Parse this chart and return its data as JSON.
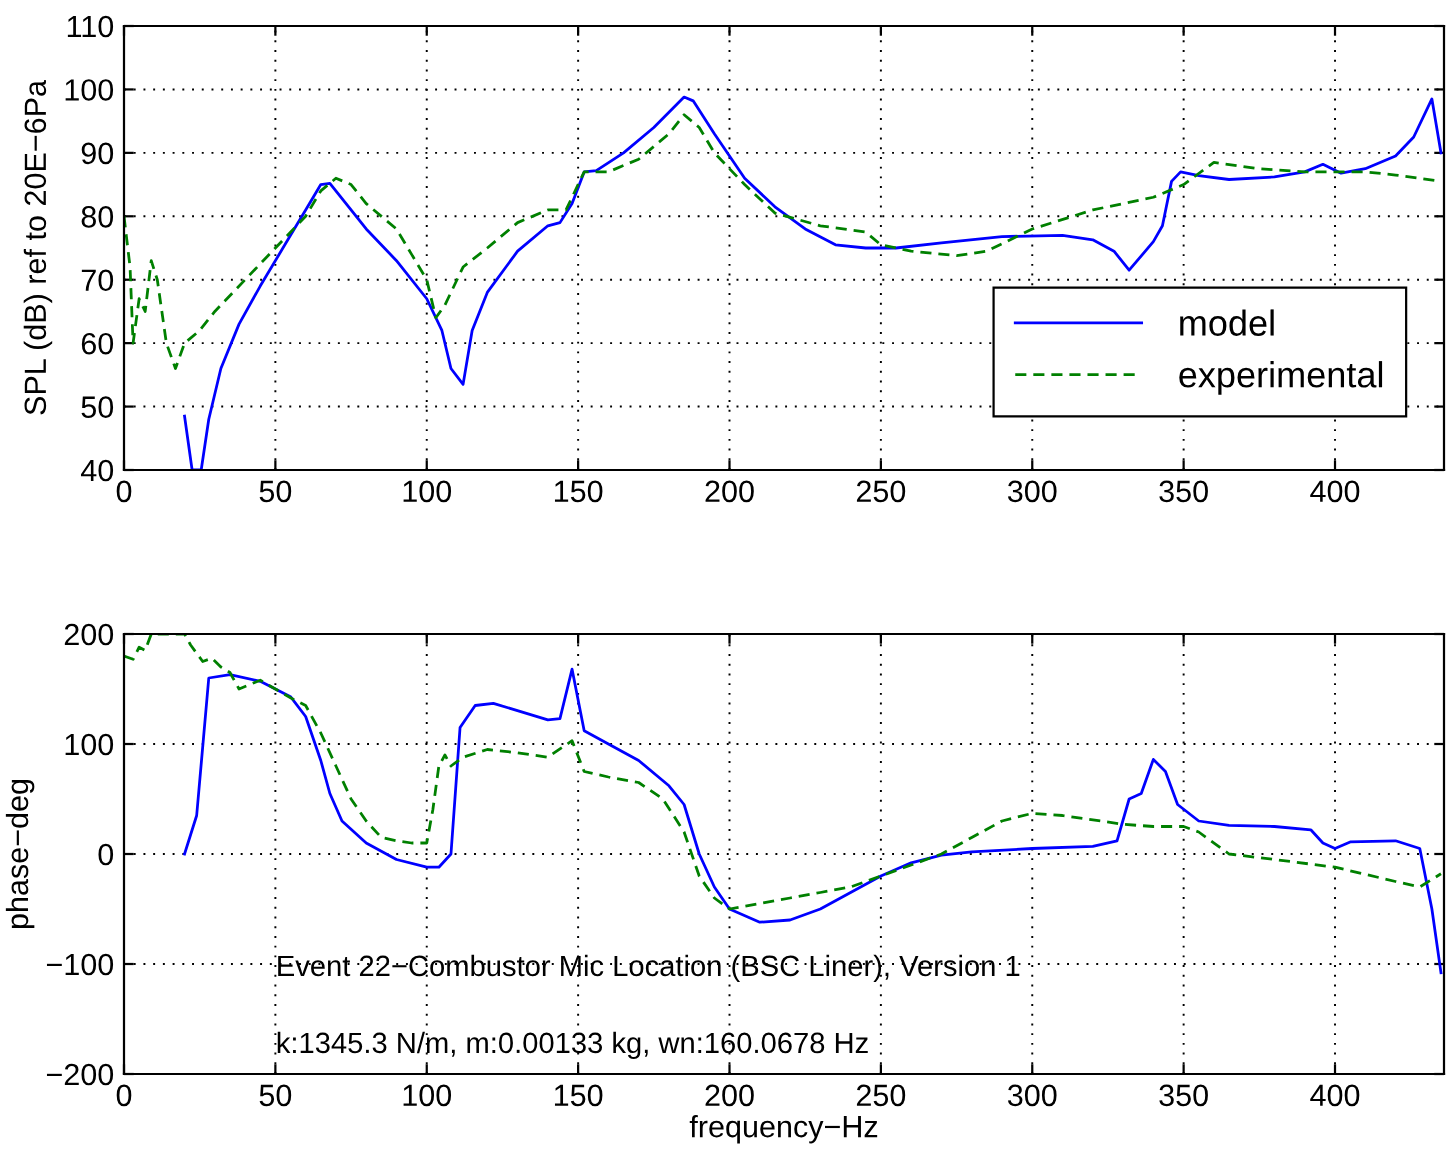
{
  "chart_data": [
    {
      "type": "line",
      "ylabel": "SPL (dB) ref to 20E−6Pa",
      "xlim": [
        0,
        436
      ],
      "ylim": [
        40,
        110
      ],
      "xticks": [
        0,
        50,
        100,
        150,
        200,
        250,
        300,
        350,
        400
      ],
      "yticks": [
        40,
        50,
        60,
        70,
        80,
        90,
        100,
        110
      ],
      "grid": true,
      "legend": "lower right",
      "series": [
        {
          "name": "model",
          "color": "#0000ff",
          "line_style": "solid",
          "x": [
            20,
            22.5,
            25.5,
            28,
            32,
            38,
            45,
            55,
            60,
            65,
            68,
            75,
            80,
            90,
            100,
            105,
            108,
            112,
            115,
            120,
            130,
            140,
            144,
            148,
            152,
            156,
            165,
            175,
            185,
            188,
            195,
            205,
            215,
            225,
            235,
            245,
            255,
            270,
            290,
            310,
            320,
            327,
            332,
            340,
            343,
            346,
            349,
            355,
            365,
            380,
            390,
            396,
            402,
            410,
            420,
            426,
            432,
            435
          ],
          "values": [
            48.5,
            40,
            40,
            48,
            56,
            63,
            69,
            77,
            81,
            85,
            85.2,
            81,
            78,
            73,
            67,
            62,
            56,
            53.5,
            62,
            68,
            74.5,
            78.5,
            79,
            82,
            87,
            87.2,
            90,
            94,
            98.8,
            98.2,
            93,
            86,
            81.5,
            78,
            75.5,
            75,
            75,
            75.8,
            76.8,
            77,
            76.3,
            74.5,
            71.5,
            76,
            78.5,
            85.5,
            87,
            86.4,
            85.8,
            86.2,
            87,
            88.2,
            86.8,
            87.5,
            89.5,
            92.5,
            98.5,
            90
          ]
        },
        {
          "name": "experimental",
          "color": "#008000",
          "line_style": "dashed",
          "x": [
            0,
            2,
            3,
            5,
            7,
            9,
            11,
            14,
            17,
            20,
            25,
            30,
            40,
            50,
            60,
            65,
            70,
            75,
            80,
            90,
            95,
            100,
            103,
            106,
            112,
            120,
            130,
            140,
            146,
            152,
            160,
            170,
            180,
            185,
            190,
            195,
            205,
            215,
            230,
            245,
            250,
            260,
            275,
            285,
            300,
            320,
            340,
            350,
            360,
            375,
            390,
            410,
            420,
            435
          ],
          "values": [
            80,
            72,
            60,
            67,
            65,
            73,
            70,
            60,
            56,
            60,
            62,
            65,
            70,
            75,
            80,
            84,
            86,
            85,
            82,
            78,
            74,
            70,
            64,
            66,
            72,
            75,
            79,
            81,
            81,
            87,
            87,
            89,
            93,
            96,
            94,
            90,
            85,
            80.5,
            78.5,
            77.5,
            75.5,
            74.5,
            73.8,
            74.5,
            78,
            81,
            83,
            85,
            88.5,
            87.5,
            87,
            87,
            86.5,
            85.5
          ]
        }
      ]
    },
    {
      "type": "line",
      "xlabel": "frequency−Hz",
      "ylabel": "phase−deg",
      "xlim": [
        0,
        436
      ],
      "ylim": [
        -200,
        200
      ],
      "xticks": [
        0,
        50,
        100,
        150,
        200,
        250,
        300,
        350,
        400
      ],
      "yticks": [
        {
          "value": -200,
          "label": "−200"
        },
        {
          "value": -100,
          "label": "−100"
        },
        0,
        100,
        200
      ],
      "grid": true,
      "annotations": [
        "Event 22−Combustor Mic Location (BSC Liner), Version 1",
        "k:1345.3 N/m, m:0.00133 kg, wn:160.0678 Hz"
      ],
      "series": [
        {
          "color": "#0000ff",
          "line_style": "solid",
          "x": [
            20,
            24,
            28,
            35,
            45,
            55,
            60,
            65,
            68,
            72,
            80,
            90,
            100,
            104,
            108,
            111,
            116,
            122,
            140,
            144,
            148,
            152,
            160,
            170,
            180,
            185,
            190,
            195,
            200,
            210,
            220,
            230,
            240,
            250,
            260,
            270,
            280,
            300,
            320,
            328,
            332,
            336,
            340,
            344,
            348,
            355,
            365,
            380,
            392,
            396,
            400,
            405,
            420,
            428,
            432,
            435
          ],
          "values": [
            0,
            35,
            160,
            163,
            157,
            143,
            125,
            85,
            55,
            30,
            10,
            -5,
            -12,
            -12,
            0,
            115,
            135,
            137,
            122,
            123,
            168,
            112,
            100,
            85,
            62,
            45,
            0,
            -30,
            -50,
            -62,
            -60,
            -50,
            -35,
            -20,
            -8,
            -1,
            2,
            5,
            7,
            12,
            50,
            55,
            86,
            75,
            45,
            30,
            26,
            25,
            22,
            10,
            5,
            11,
            12,
            5,
            -50,
            -108
          ]
        },
        {
          "color": "#008000",
          "line_style": "dashed",
          "x": [
            0,
            3,
            5,
            7,
            9,
            20,
            22,
            26,
            29,
            32,
            35,
            38,
            45,
            55,
            60,
            65,
            70,
            75,
            80,
            85,
            90,
            95,
            100,
            102,
            104,
            106,
            108,
            112,
            120,
            130,
            140,
            148,
            152,
            160,
            170,
            178,
            185,
            190,
            195,
            200,
            210,
            220,
            230,
            240,
            250,
            260,
            270,
            280,
            290,
            300,
            310,
            330,
            340,
            350,
            355,
            365,
            380,
            400,
            420,
            428,
            435
          ],
          "values": [
            180,
            177,
            188,
            185,
            200,
            200,
            190,
            175,
            178,
            170,
            165,
            150,
            158,
            142,
            135,
            110,
            80,
            50,
            30,
            15,
            12,
            10,
            10,
            40,
            80,
            90,
            80,
            88,
            95,
            92,
            88,
            103,
            75,
            70,
            65,
            50,
            20,
            -20,
            -40,
            -50,
            -45,
            -40,
            -35,
            -30,
            -20,
            -10,
            0,
            15,
            30,
            37,
            35,
            27,
            25,
            25,
            20,
            0,
            -5,
            -12,
            -25,
            -30,
            -18
          ]
        }
      ]
    }
  ]
}
